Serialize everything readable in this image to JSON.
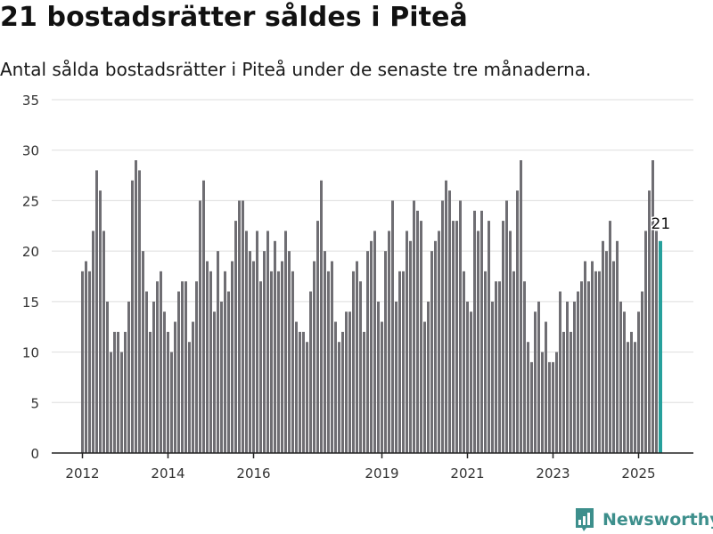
{
  "header": {
    "title": "21 bostadsrätter såldes i Piteå",
    "subtitle": "Antal sålda bostadsrätter i Piteå under de senaste tre månaderna."
  },
  "brand": {
    "name": "Newsworthy"
  },
  "colors": {
    "bar": "#6f6e73",
    "highlight": "#26a09c",
    "grid": "#dddddd",
    "axis": "#222222",
    "brand": "#3d8f8c"
  },
  "chart_data": {
    "type": "bar",
    "title": "",
    "xlabel": "",
    "ylabel": "",
    "x_start": "2012-01",
    "x_ticks": [
      "2012",
      "2014",
      "2016",
      "2019",
      "2021",
      "2023",
      "2025"
    ],
    "y_ticks": [
      0,
      5,
      10,
      15,
      20,
      25,
      30,
      35
    ],
    "ylim": [
      0,
      35
    ],
    "grid": true,
    "values": [
      18,
      19,
      18,
      22,
      28,
      26,
      22,
      15,
      10,
      12,
      12,
      10,
      12,
      15,
      27,
      29,
      28,
      20,
      16,
      12,
      15,
      17,
      18,
      14,
      12,
      10,
      13,
      16,
      17,
      17,
      11,
      13,
      17,
      25,
      27,
      19,
      18,
      14,
      20,
      15,
      18,
      16,
      19,
      23,
      25,
      25,
      22,
      20,
      19,
      22,
      17,
      20,
      22,
      18,
      21,
      18,
      19,
      22,
      20,
      18,
      13,
      12,
      12,
      11,
      16,
      19,
      23,
      27,
      20,
      18,
      19,
      13,
      11,
      12,
      14,
      14,
      18,
      19,
      17,
      12,
      20,
      21,
      22,
      15,
      13,
      20,
      22,
      25,
      15,
      18,
      18,
      22,
      21,
      25,
      24,
      23,
      13,
      15,
      20,
      21,
      22,
      25,
      27,
      26,
      23,
      23,
      25,
      18,
      15,
      14,
      24,
      22,
      24,
      18,
      23,
      15,
      17,
      17,
      23,
      25,
      22,
      18,
      26,
      29,
      17,
      11,
      9,
      14,
      15,
      10,
      13,
      9,
      9,
      10,
      16,
      12,
      15,
      12,
      15,
      16,
      17,
      19,
      17,
      19,
      18,
      18,
      21,
      20,
      23,
      19,
      21,
      15,
      14,
      11,
      12,
      11,
      14,
      16,
      22,
      26,
      29,
      22,
      21
    ],
    "highlight_index": 162,
    "highlight_label": "21"
  }
}
